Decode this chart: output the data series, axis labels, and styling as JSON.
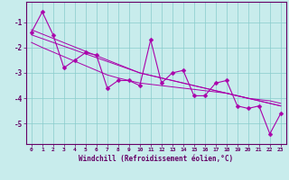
{
  "x_data": [
    0,
    1,
    2,
    3,
    4,
    5,
    6,
    7,
    8,
    9,
    10,
    11,
    12,
    13,
    14,
    15,
    16,
    17,
    18,
    19,
    20,
    21,
    22,
    23
  ],
  "y_main": [
    -1.4,
    -0.6,
    -1.5,
    -2.8,
    -2.5,
    -2.2,
    -2.3,
    -3.6,
    -3.3,
    -3.3,
    -3.5,
    -1.7,
    -3.4,
    -3.0,
    -2.9,
    -3.9,
    -3.9,
    -3.4,
    -3.3,
    -4.3,
    -4.4,
    -4.3,
    -5.4,
    -4.6
  ],
  "y_line1": [
    -1.3,
    -1.47,
    -1.64,
    -1.81,
    -1.98,
    -2.15,
    -2.32,
    -2.49,
    -2.66,
    -2.83,
    -3.0,
    -3.1,
    -3.2,
    -3.3,
    -3.4,
    -3.5,
    -3.6,
    -3.7,
    -3.8,
    -3.9,
    -4.0,
    -4.1,
    -4.2,
    -4.3
  ],
  "y_line2": [
    -1.5,
    -1.65,
    -1.8,
    -1.95,
    -2.1,
    -2.25,
    -2.4,
    -2.55,
    -2.7,
    -2.85,
    -3.0,
    -3.1,
    -3.2,
    -3.3,
    -3.4,
    -3.5,
    -3.6,
    -3.7,
    -3.8,
    -3.9,
    -4.0,
    -4.1,
    -4.2,
    -4.3
  ],
  "y_line3": [
    -1.8,
    -2.0,
    -2.18,
    -2.36,
    -2.54,
    -2.72,
    -2.9,
    -3.08,
    -3.2,
    -3.3,
    -3.4,
    -3.45,
    -3.5,
    -3.55,
    -3.6,
    -3.65,
    -3.7,
    -3.75,
    -3.8,
    -3.9,
    -4.0,
    -4.05,
    -4.1,
    -4.2
  ],
  "color": "#aa00aa",
  "bg_color": "#c8ecec",
  "grid_color": "#88cccc",
  "xlabel": "Windchill (Refroidissement éolien,°C)",
  "xlim_min": -0.5,
  "xlim_max": 23.5,
  "ylim_min": -5.8,
  "ylim_max": -0.2,
  "yticks": [
    -5,
    -4,
    -3,
    -2,
    -1
  ],
  "xticks": [
    0,
    1,
    2,
    3,
    4,
    5,
    6,
    7,
    8,
    9,
    10,
    11,
    12,
    13,
    14,
    15,
    16,
    17,
    18,
    19,
    20,
    21,
    22,
    23
  ]
}
